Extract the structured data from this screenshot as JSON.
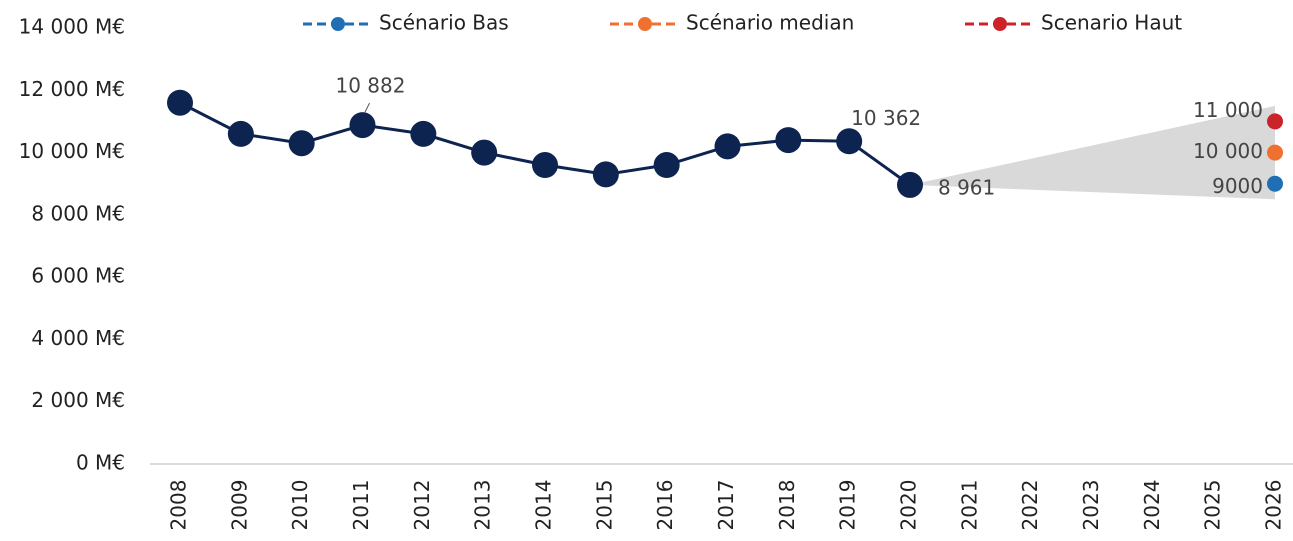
{
  "chart_data": {
    "type": "line",
    "categories": [
      "2008",
      "2009",
      "2010",
      "2011",
      "2012",
      "2013",
      "2014",
      "2015",
      "2016",
      "2017",
      "2018",
      "2019",
      "2020",
      "2021",
      "2022",
      "2023",
      "2024",
      "2025",
      "2026"
    ],
    "series": [
      {
        "name": "Scénario Bas",
        "color": "#1f6fb5",
        "values": [
          null,
          null,
          null,
          null,
          null,
          null,
          null,
          null,
          null,
          null,
          null,
          null,
          null,
          null,
          null,
          null,
          null,
          null,
          9000
        ],
        "value_labels": [
          null,
          null,
          null,
          null,
          null,
          null,
          null,
          null,
          null,
          null,
          null,
          null,
          null,
          null,
          null,
          null,
          null,
          null,
          "9000"
        ]
      },
      {
        "name": "Scénario median",
        "color": "#f07030",
        "values": [
          null,
          null,
          null,
          null,
          null,
          null,
          null,
          null,
          null,
          null,
          null,
          null,
          null,
          null,
          null,
          null,
          null,
          null,
          10000
        ],
        "value_labels": [
          null,
          null,
          null,
          null,
          null,
          null,
          null,
          null,
          null,
          null,
          null,
          null,
          null,
          null,
          null,
          null,
          null,
          null,
          "10 000"
        ]
      },
      {
        "name": "Scenario Haut",
        "color": "#cc2229",
        "values": [
          null,
          null,
          null,
          null,
          null,
          null,
          null,
          null,
          null,
          null,
          null,
          null,
          null,
          null,
          null,
          null,
          null,
          null,
          11000
        ],
        "value_labels": [
          null,
          null,
          null,
          null,
          null,
          null,
          null,
          null,
          null,
          null,
          null,
          null,
          null,
          null,
          null,
          null,
          null,
          null,
          "11 000"
        ]
      }
    ],
    "history": {
      "color": "#0d2350",
      "values": [
        11600,
        10600,
        10300,
        10882,
        10600,
        10000,
        9600,
        9300,
        9600,
        10200,
        10400,
        10362,
        8961,
        null,
        null,
        null,
        null,
        null,
        null
      ],
      "value_labels": [
        null,
        null,
        null,
        "10 882",
        null,
        null,
        null,
        null,
        null,
        null,
        null,
        "10 362",
        "8 961",
        null,
        null,
        null,
        null,
        null,
        null
      ]
    },
    "fan": {
      "color": "#d9d9d9",
      "x": [
        "2020",
        "2026"
      ],
      "low": [
        8961,
        8500
      ],
      "high": [
        8961,
        11500
      ]
    },
    "ylim": [
      0,
      14000
    ],
    "yticks": [
      {
        "value": 0,
        "label": "0 M€"
      },
      {
        "value": 2000,
        "label": "2 000 M€"
      },
      {
        "value": 4000,
        "label": "4 000 M€"
      },
      {
        "value": 6000,
        "label": "6 000 M€"
      },
      {
        "value": 8000,
        "label": "8 000 M€"
      },
      {
        "value": 10000,
        "label": "10 000 M€"
      },
      {
        "value": 12000,
        "label": "12 000 M€"
      },
      {
        "value": 14000,
        "label": "14 000 M€"
      }
    ],
    "legend": "top"
  }
}
